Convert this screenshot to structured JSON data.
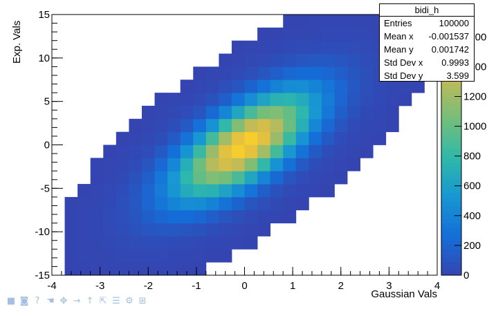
{
  "chart_data": {
    "type": "heatmap",
    "title": "",
    "xlabel": "Gaussian Vals",
    "ylabel": "Exp. Vals",
    "xlim": [
      -4,
      4
    ],
    "ylim": [
      -15,
      15
    ],
    "x_ticks": [
      "-4",
      "-3",
      "-2",
      "-1",
      "0",
      "1",
      "2",
      "3",
      "4"
    ],
    "y_ticks": [
      "-15",
      "-10",
      "-5",
      "0",
      "5",
      "10",
      "15"
    ],
    "x_bins": 30,
    "y_bins": 20,
    "peak": 1600,
    "palette_ticks": [
      "0",
      "200",
      "400",
      "600",
      "800",
      "1000",
      "1200",
      "1400",
      "1600"
    ],
    "palette_tick_values": [
      0,
      200,
      400,
      600,
      800,
      1000,
      1200,
      1400,
      1600
    ],
    "palette_max": 1750,
    "grid": false,
    "legend": "top-right stats box"
  },
  "stats": {
    "name": "bidi_h",
    "rows": [
      {
        "label": "Entries",
        "value": "100000"
      },
      {
        "label": "Mean x",
        "value": "-0.001537"
      },
      {
        "label": "Mean y",
        "value": "0.001742"
      },
      {
        "label": "Std Dev x",
        "value": "0.9993"
      },
      {
        "label": "Std Dev y",
        "value": "3.599"
      }
    ]
  },
  "toolbar": {
    "icons": [
      "stop-icon",
      "camera-icon",
      "help-icon",
      "pointer-icon",
      "move-icon",
      "arrow-right-icon",
      "arrow-up-icon",
      "zoom-icon",
      "list-icon",
      "settings-icon",
      "grid-icon"
    ]
  }
}
